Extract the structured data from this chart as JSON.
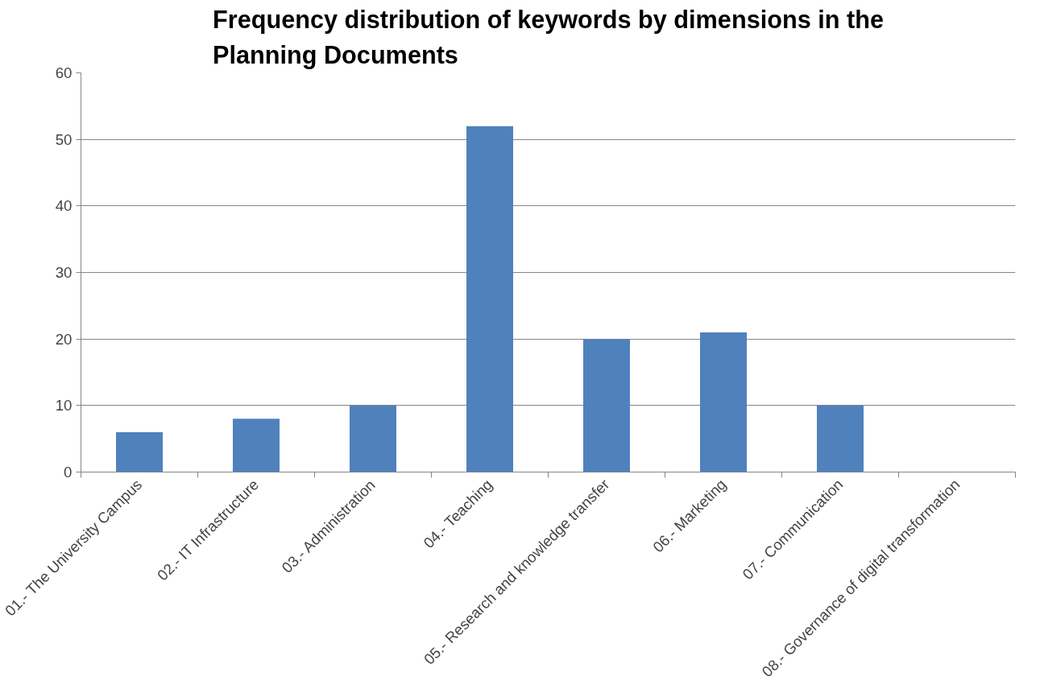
{
  "chart_data": {
    "type": "bar",
    "title": "Frequency distribution of keywords by dimensions in the Planning Documents",
    "categories": [
      "01.- The University Campus",
      "02.- IT Infrastructure",
      "03.- Administration",
      "04.- Teaching",
      "05.- Research and knowledge transfer",
      "06.- Marketing",
      "07.- Communication",
      "08.- Governance of digital transformation"
    ],
    "values": [
      6,
      8,
      10,
      52,
      20,
      21,
      10,
      0
    ],
    "color": "#4f81bd",
    "ylim": [
      0,
      60
    ],
    "yticks": [
      0,
      10,
      20,
      30,
      40,
      50,
      60
    ],
    "grid": "y"
  }
}
